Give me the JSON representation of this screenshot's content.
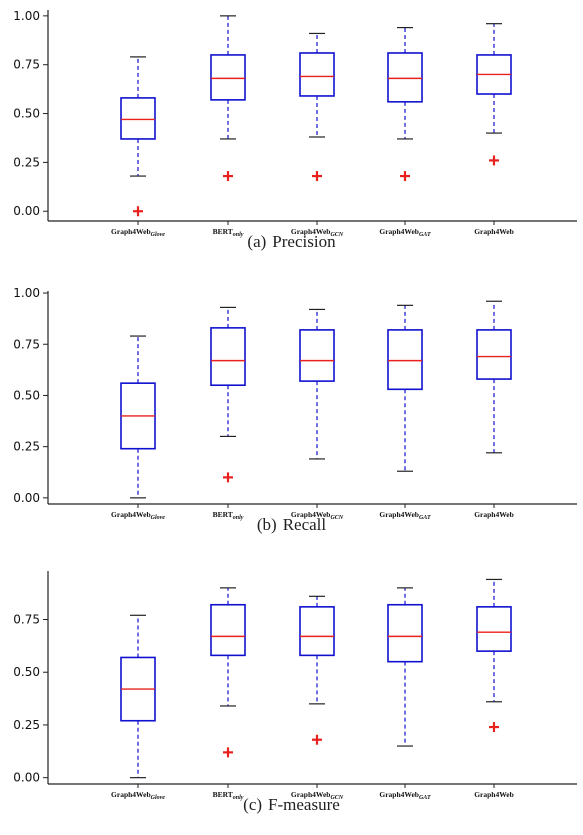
{
  "chart_data": [
    {
      "type": "box",
      "letter": "(a)",
      "caption": "Precision",
      "ylim": [
        -0.05,
        1.03
      ],
      "yticks": [
        "0.00",
        "0.25",
        "0.50",
        "0.75",
        "1.00"
      ],
      "yticks_values": [
        0,
        0.25,
        0.5,
        0.75,
        1.0
      ],
      "categories": [
        {
          "main": "Graph4Web",
          "sub": "Glove"
        },
        {
          "main": "BERT",
          "sub": "only"
        },
        {
          "main": "Graph4Web",
          "sub": "GCN"
        },
        {
          "main": "Graph4Web",
          "sub": "GAT"
        },
        {
          "main": "Graph4Web",
          "sub": ""
        }
      ],
      "boxes": [
        {
          "whisker_low": 0.18,
          "q1": 0.37,
          "median": 0.47,
          "q3": 0.58,
          "whisker_high": 0.79,
          "outliers": [
            0.0
          ]
        },
        {
          "whisker_low": 0.37,
          "q1": 0.57,
          "median": 0.68,
          "q3": 0.8,
          "whisker_high": 1.0,
          "outliers": [
            0.18
          ]
        },
        {
          "whisker_low": 0.38,
          "q1": 0.59,
          "median": 0.69,
          "q3": 0.81,
          "whisker_high": 0.91,
          "outliers": [
            0.18
          ]
        },
        {
          "whisker_low": 0.37,
          "q1": 0.56,
          "median": 0.68,
          "q3": 0.81,
          "whisker_high": 0.94,
          "outliers": [
            0.18
          ]
        },
        {
          "whisker_low": 0.4,
          "q1": 0.6,
          "median": 0.7,
          "q3": 0.8,
          "whisker_high": 0.96,
          "outliers": [
            0.26
          ]
        }
      ]
    },
    {
      "type": "box",
      "letter": "(b)",
      "caption": "Recall",
      "ylim": [
        -0.03,
        1.01
      ],
      "yticks": [
        "0.00",
        "0.25",
        "0.50",
        "0.75",
        "1.00"
      ],
      "yticks_values": [
        0,
        0.25,
        0.5,
        0.75,
        1.0
      ],
      "categories": [
        {
          "main": "Graph4Web",
          "sub": "Glove"
        },
        {
          "main": "BERT",
          "sub": "only"
        },
        {
          "main": "Graph4Web",
          "sub": "GCN"
        },
        {
          "main": "Graph4Web",
          "sub": "GAT"
        },
        {
          "main": "Graph4Web",
          "sub": ""
        }
      ],
      "boxes": [
        {
          "whisker_low": 0.0,
          "q1": 0.24,
          "median": 0.4,
          "q3": 0.56,
          "whisker_high": 0.79,
          "outliers": []
        },
        {
          "whisker_low": 0.3,
          "q1": 0.55,
          "median": 0.67,
          "q3": 0.83,
          "whisker_high": 0.93,
          "outliers": [
            0.1
          ]
        },
        {
          "whisker_low": 0.19,
          "q1": 0.57,
          "median": 0.67,
          "q3": 0.82,
          "whisker_high": 0.92,
          "outliers": []
        },
        {
          "whisker_low": 0.13,
          "q1": 0.53,
          "median": 0.67,
          "q3": 0.82,
          "whisker_high": 0.94,
          "outliers": []
        },
        {
          "whisker_low": 0.22,
          "q1": 0.58,
          "median": 0.69,
          "q3": 0.82,
          "whisker_high": 0.96,
          "outliers": []
        }
      ]
    },
    {
      "type": "box",
      "letter": "(c)",
      "caption": "F-measure",
      "ylim": [
        -0.03,
        0.98
      ],
      "yticks": [
        "0.00",
        "0.25",
        "0.50",
        "0.75"
      ],
      "yticks_values": [
        0,
        0.25,
        0.5,
        0.75
      ],
      "categories": [
        {
          "main": "Graph4Web",
          "sub": "Glove"
        },
        {
          "main": "BERT",
          "sub": "only"
        },
        {
          "main": "Graph4Web",
          "sub": "GCN"
        },
        {
          "main": "Graph4Web",
          "sub": "GAT"
        },
        {
          "main": "Graph4Web",
          "sub": ""
        }
      ],
      "boxes": [
        {
          "whisker_low": 0.0,
          "q1": 0.27,
          "median": 0.42,
          "q3": 0.57,
          "whisker_high": 0.77,
          "outliers": []
        },
        {
          "whisker_low": 0.34,
          "q1": 0.58,
          "median": 0.67,
          "q3": 0.82,
          "whisker_high": 0.9,
          "outliers": [
            0.12
          ]
        },
        {
          "whisker_low": 0.35,
          "q1": 0.58,
          "median": 0.67,
          "q3": 0.81,
          "whisker_high": 0.86,
          "outliers": [
            0.18
          ]
        },
        {
          "whisker_low": 0.15,
          "q1": 0.55,
          "median": 0.67,
          "q3": 0.82,
          "whisker_high": 0.9,
          "outliers": []
        },
        {
          "whisker_low": 0.36,
          "q1": 0.6,
          "median": 0.69,
          "q3": 0.81,
          "whisker_high": 0.94,
          "outliers": [
            0.24
          ]
        }
      ]
    }
  ],
  "colors": {
    "box": "#1010d0",
    "median": "#e8201e",
    "outlier": "#e8201e",
    "axis": "#222222"
  }
}
